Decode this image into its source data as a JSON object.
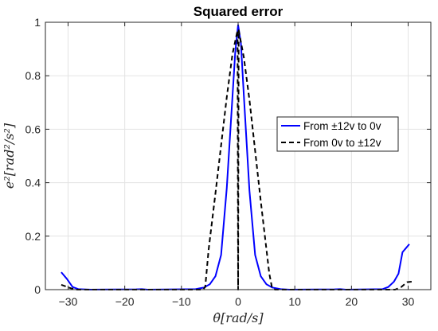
{
  "chart_data": {
    "type": "line",
    "title": "Squared error",
    "xlabel": "θ̇[rad/s]",
    "ylabel": "e²[rad²/s²]",
    "xlim": [
      -34,
      34
    ],
    "ylim": [
      0,
      1
    ],
    "xticks": [
      -30,
      -20,
      -10,
      0,
      10,
      20,
      30
    ],
    "xtick_labels": [
      "−30",
      "−20",
      "−10",
      "0",
      "10",
      "20",
      "30"
    ],
    "yticks": [
      0,
      0.2,
      0.4,
      0.6,
      0.8,
      1
    ],
    "ytick_labels": [
      "0",
      "0.2",
      "0.4",
      "0.6",
      "0.8",
      "1"
    ],
    "grid": true,
    "legend_position": "center-right",
    "series": [
      {
        "name": "From ±12v to 0v",
        "color": "#0000ff",
        "dash": "solid",
        "points": [
          [
            -31.2,
            0.065
          ],
          [
            -30.2,
            0.04
          ],
          [
            -29.2,
            0.01
          ],
          [
            -28.2,
            0.002
          ],
          [
            -26,
            0.0
          ],
          [
            -18,
            0.001
          ],
          [
            -17,
            0.002
          ],
          [
            -16,
            0.0
          ],
          [
            -7.5,
            0.002
          ],
          [
            -6,
            0.008
          ],
          [
            -5,
            0.02
          ],
          [
            -4,
            0.05
          ],
          [
            -3,
            0.13
          ],
          [
            -2,
            0.38
          ],
          [
            -1,
            0.72
          ],
          [
            -0.5,
            0.89
          ],
          [
            0,
            0.99
          ],
          [
            0.5,
            0.92
          ],
          [
            1,
            0.73
          ],
          [
            2,
            0.37
          ],
          [
            3,
            0.13
          ],
          [
            4,
            0.05
          ],
          [
            5,
            0.02
          ],
          [
            6,
            0.008
          ],
          [
            7.5,
            0.002
          ],
          [
            9,
            0.0
          ],
          [
            17,
            0.001
          ],
          [
            18,
            0.002
          ],
          [
            19,
            0.0
          ],
          [
            25.5,
            0.002
          ],
          [
            26.5,
            0.01
          ],
          [
            27.5,
            0.03
          ],
          [
            28.3,
            0.06
          ],
          [
            29,
            0.14
          ],
          [
            30.2,
            0.17
          ]
        ]
      },
      {
        "name": "From 0v to ±12v",
        "color": "#000000",
        "dash": "dashed",
        "points": [
          [
            -31.2,
            0.018
          ],
          [
            -29.5,
            0.005
          ],
          [
            -28.5,
            0.0
          ],
          [
            -6.2,
            0.0
          ],
          [
            -5.8,
            0.01
          ],
          [
            -5.2,
            0.15
          ],
          [
            -4,
            0.36
          ],
          [
            -3,
            0.54
          ],
          [
            -2,
            0.72
          ],
          [
            -1,
            0.88
          ],
          [
            -0.1,
            0.97
          ],
          [
            0,
            0.0
          ],
          [
            0.1,
            0.97
          ],
          [
            1,
            0.87
          ],
          [
            2,
            0.71
          ],
          [
            3,
            0.52
          ],
          [
            4,
            0.33
          ],
          [
            5.5,
            0.06
          ],
          [
            6,
            0.005
          ],
          [
            6.5,
            0.0
          ],
          [
            27.7,
            0.0
          ],
          [
            28.8,
            0.01
          ],
          [
            29.8,
            0.028
          ],
          [
            30.7,
            0.03
          ]
        ]
      }
    ]
  }
}
